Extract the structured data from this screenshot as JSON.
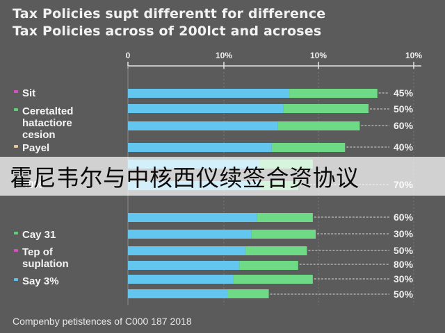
{
  "chart_data": {
    "type": "bar",
    "orientation": "horizontal",
    "stacked": true,
    "title_lines": [
      "Tax Policies supt differentt for difference",
      "Tax Policies across of 200lct and acroses"
    ],
    "x_ticks": [
      "0",
      "10%",
      "10%",
      "10%"
    ],
    "legend": [
      {
        "label": "Sit",
        "color": "#d94fc0"
      },
      {
        "label": "Ceretalted hatactiore cesion",
        "color": "#5fcf7a"
      },
      {
        "label": "Payel",
        "color": "#e8c8a0"
      },
      {
        "label": "40%",
        "color": "#5fcf7a"
      },
      {
        "label": "Cay 31",
        "color": "#5fcf7a"
      },
      {
        "label": "Tep of suplation",
        "color": "#d94fc0"
      },
      {
        "label": "Say 3%",
        "color": "#5bc0ea"
      }
    ],
    "series": [
      {
        "color": "#62c6ee",
        "values": [
          55,
          53,
          51,
          49,
          45,
          45,
          44,
          42,
          40,
          38,
          36,
          34
        ]
      },
      {
        "color": "#6fda86",
        "values": [
          30,
          29,
          28,
          25,
          18,
          13,
          19,
          22,
          21,
          20,
          27,
          14
        ]
      }
    ],
    "value_labels": [
      "45%",
      "50%",
      "60%",
      "40%",
      "70%",
      "60%",
      "30%",
      "50%",
      "80%",
      "30%",
      "50%"
    ],
    "footer": "Compenby petistences of C000 187 2018"
  },
  "overlay": {
    "text": "霍尼韦尔与中核西仪续签合资协议"
  },
  "colors": {
    "background": "#5b5b5b",
    "bar_blue": "#62c6ee",
    "bar_green": "#6fda86",
    "axis": "#e6e6e6",
    "grid": "#7a7a7a"
  }
}
